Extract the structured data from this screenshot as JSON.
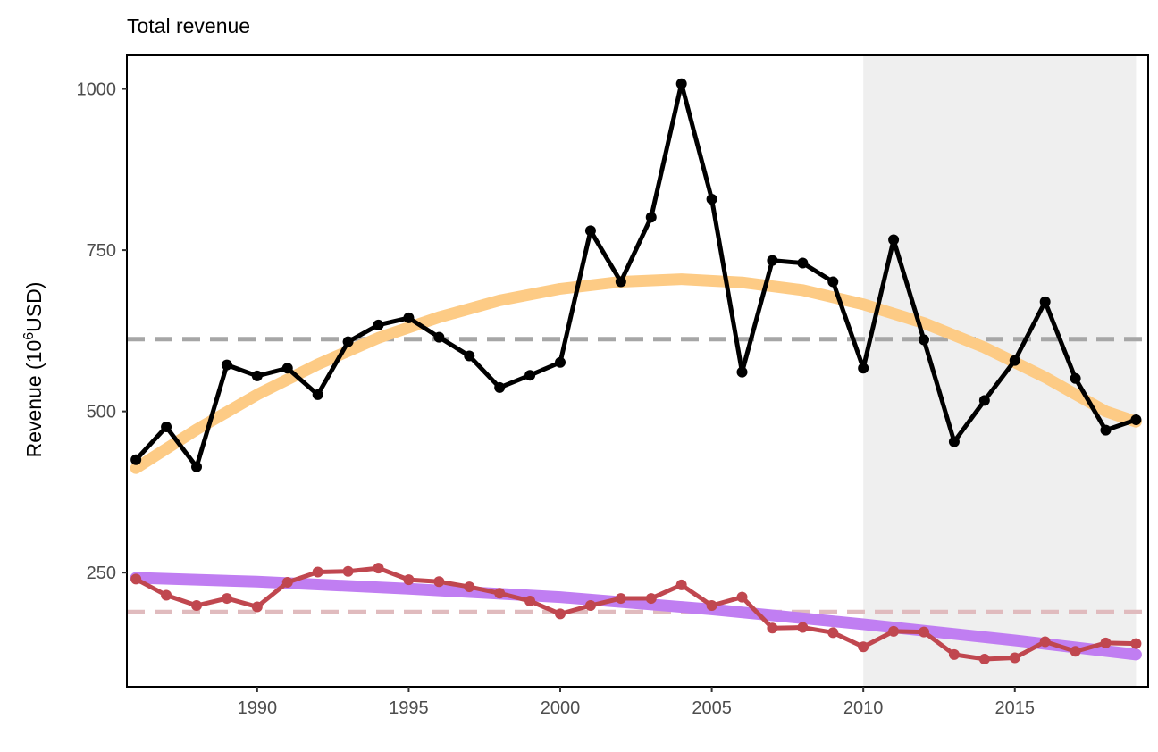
{
  "chart_data": {
    "type": "line",
    "title": "Total revenue",
    "ylabel": "Revenue (10^6USD)",
    "ylabel_parts": {
      "before": "Revenue (10",
      "superscript": "6",
      "after": "USD)"
    },
    "xlabel": "",
    "xlim": [
      1985.7,
      2019.4
    ],
    "ylim": [
      73,
      1052
    ],
    "x_ticks": [
      1990,
      1995,
      2000,
      2005,
      2010,
      2015
    ],
    "x_tick_labels": [
      "1990",
      "1995",
      "2000",
      "2005",
      "2010",
      "2015"
    ],
    "y_ticks": [
      250,
      500,
      750,
      1000
    ],
    "y_tick_labels": [
      "250",
      "500",
      "750",
      "1000"
    ],
    "grid": false,
    "shaded_region": {
      "x_start": 2010,
      "x_end": 2019,
      "color": "#efefef"
    },
    "x": [
      1986,
      1987,
      1988,
      1989,
      1990,
      1991,
      1992,
      1993,
      1994,
      1995,
      1996,
      1997,
      1998,
      1999,
      2000,
      2001,
      2002,
      2003,
      2004,
      2005,
      2006,
      2007,
      2008,
      2009,
      2010,
      2011,
      2012,
      2013,
      2014,
      2015,
      2016,
      2017,
      2018,
      2019
    ],
    "series": [
      {
        "color": "#000000",
        "values": [
          425,
          476,
          414,
          572,
          555,
          567,
          526,
          608,
          634,
          645,
          615,
          586,
          537,
          556,
          576,
          780,
          701,
          801,
          1008,
          829,
          561,
          734,
          730,
          701,
          567,
          766,
          611,
          453,
          517,
          579,
          670,
          551,
          471,
          487
        ]
      },
      {
        "color": "#c0474f",
        "values": [
          240,
          215,
          199,
          210,
          197,
          235,
          251,
          252,
          257,
          239,
          236,
          228,
          218,
          206,
          186,
          199,
          210,
          210,
          231,
          199,
          212,
          164,
          165,
          157,
          135,
          159,
          158,
          123,
          116,
          118,
          143,
          128,
          141,
          140
        ]
      }
    ],
    "trend_lines": [
      {
        "color": "#fdcb85",
        "x": [
          1986,
          1988,
          1990,
          1992,
          1994,
          1996,
          1998,
          2000,
          2002,
          2004,
          2006,
          2008,
          2010,
          2012,
          2014,
          2016,
          2018,
          2019
        ],
        "values": [
          412,
          472,
          526,
          573,
          614,
          646,
          672,
          690,
          701,
          705,
          700,
          688,
          666,
          637,
          599,
          553,
          500,
          484
        ]
      },
      {
        "color": "#c07ef2",
        "x": [
          1986,
          1990,
          1995,
          2000,
          2005,
          2010,
          2015,
          2019
        ],
        "values": [
          242,
          236,
          225,
          212,
          193,
          170,
          145,
          123
        ]
      }
    ],
    "reference_lines": [
      {
        "color": "#a6a6a6",
        "value": 612
      },
      {
        "color": "#e0bbbe",
        "value": 189
      }
    ]
  }
}
